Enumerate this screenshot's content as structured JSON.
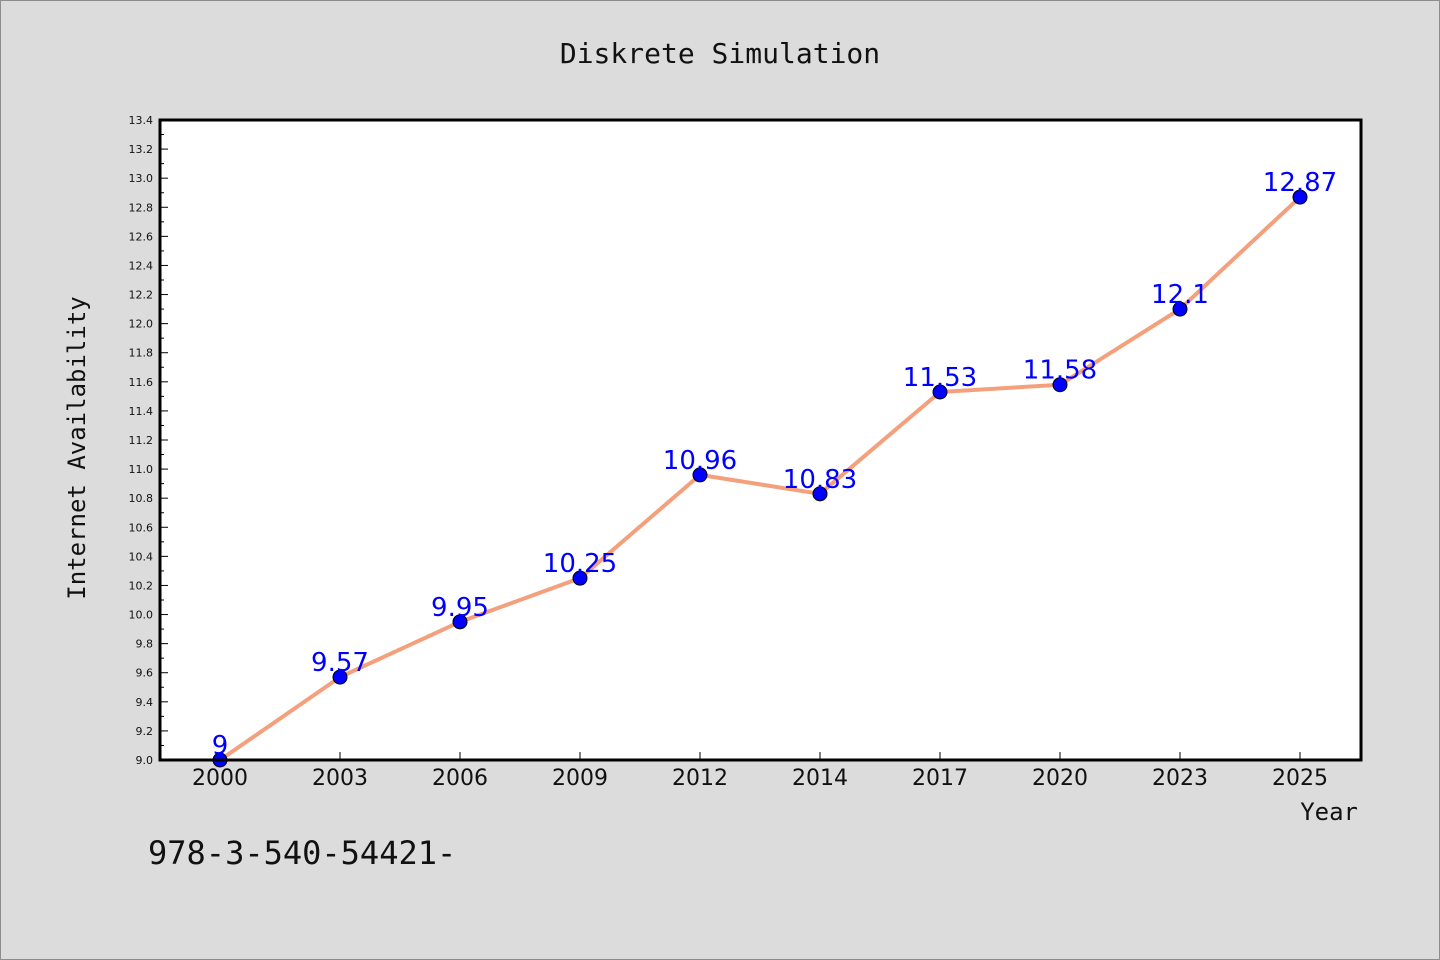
{
  "chart_data": {
    "type": "line",
    "title": "Diskrete Simulation",
    "xlabel": "Year",
    "ylabel": "Internet Availability",
    "categories": [
      "2000",
      "2003",
      "2006",
      "2009",
      "2012",
      "2014",
      "2017",
      "2020",
      "2023",
      "2025"
    ],
    "series": [
      {
        "values": [
          9,
          9.57,
          9.95,
          10.25,
          10.96,
          10.83,
          11.53,
          11.58,
          12.1,
          12.87
        ],
        "data_labels": [
          "9",
          "9.57",
          "9.95",
          "10.25",
          "10.96",
          "10.83",
          "11.53",
          "11.58",
          "12.1",
          "12.87"
        ],
        "line_color": "#f4a07d",
        "marker_color": "#0000ff"
      }
    ],
    "ylim": [
      9.0,
      13.4
    ],
    "yticks": [
      "9.0",
      "9.2",
      "9.4",
      "9.6",
      "9.8",
      "10.0",
      "10.2",
      "10.4",
      "10.6",
      "10.8",
      "11.0",
      "11.2",
      "11.4",
      "11.6",
      "11.8",
      "12.0",
      "12.2",
      "12.4",
      "12.6",
      "12.8",
      "13.0",
      "13.2",
      "13.4"
    ],
    "grid": false,
    "legend": "none"
  },
  "footer": {
    "text": "978-3-540-54421-"
  },
  "colors": {
    "background": "#dcdcdc",
    "plot_area": "#ffffff",
    "line": "#f4a07d",
    "marker": "#0000ff",
    "data_label": "#0000ff"
  }
}
